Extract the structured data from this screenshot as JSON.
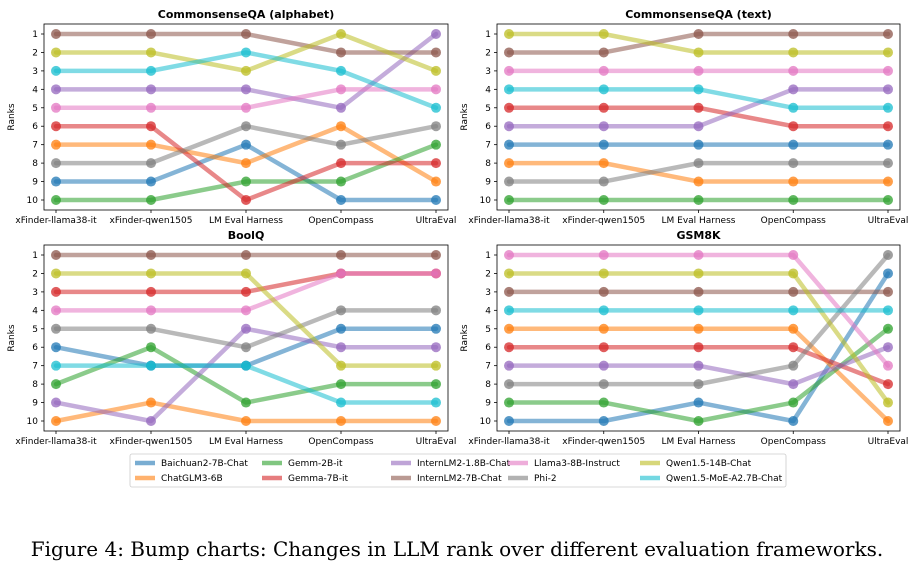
{
  "caption": "Figure 4: Bump charts: Changes in LLM rank over different evaluation frameworks.",
  "colors": {
    "Baichuan2-7B-Chat": "#1f77b4",
    "ChatGLM3-6B": "#ff7f0e",
    "Gemm-2B-it": "#2ca02c",
    "Gemma-7B-it": "#d62728",
    "InternLM2-1.8B-Chat": "#9467bd",
    "InternLM2-7B-Chat": "#8c564b",
    "Llama3-8B-Instruct": "#e377c2",
    "Phi-2": "#7f7f7f",
    "Qwen1.5-14B-Chat": "#bcbd22",
    "Qwen1.5-MoE-A2.7B-Chat": "#17becf"
  },
  "legend": [
    "Baichuan2-7B-Chat",
    "ChatGLM3-6B",
    "Gemm-2B-it",
    "Gemma-7B-it",
    "InternLM2-1.8B-Chat",
    "InternLM2-7B-Chat",
    "Llama3-8B-Instruct",
    "Phi-2",
    "Qwen1.5-14B-Chat",
    "Qwen1.5-MoE-A2.7B-Chat"
  ],
  "chart_data": [
    {
      "type": "line",
      "title": "CommonsenseQA (alphabet)",
      "xlabel": "",
      "ylabel": "Ranks",
      "categories": [
        "xFinder-llama38-it",
        "xFinder-qwen1505",
        "LM Eval Harness",
        "OpenCompass",
        "UltraEval"
      ],
      "yticks": [
        "1",
        "2",
        "3",
        "4",
        "5",
        "6",
        "7",
        "8",
        "9",
        "10"
      ],
      "ylim": [
        1,
        10
      ],
      "series": [
        {
          "name": "Baichuan2-7B-Chat",
          "values": [
            9,
            9,
            7,
            10,
            10
          ]
        },
        {
          "name": "ChatGLM3-6B",
          "values": [
            7,
            7,
            8,
            6,
            9
          ]
        },
        {
          "name": "Gemm-2B-it",
          "values": [
            10,
            10,
            9,
            9,
            7
          ]
        },
        {
          "name": "Gemma-7B-it",
          "values": [
            6,
            6,
            10,
            8,
            8
          ]
        },
        {
          "name": "InternLM2-1.8B-Chat",
          "values": [
            4,
            4,
            4,
            5,
            1
          ]
        },
        {
          "name": "InternLM2-7B-Chat",
          "values": [
            1,
            1,
            1,
            2,
            2
          ]
        },
        {
          "name": "Llama3-8B-Instruct",
          "values": [
            5,
            5,
            5,
            4,
            4
          ]
        },
        {
          "name": "Phi-2",
          "values": [
            8,
            8,
            6,
            7,
            6
          ]
        },
        {
          "name": "Qwen1.5-14B-Chat",
          "values": [
            2,
            2,
            3,
            1,
            3
          ]
        },
        {
          "name": "Qwen1.5-MoE-A2.7B-Chat",
          "values": [
            3,
            3,
            2,
            3,
            5
          ]
        }
      ]
    },
    {
      "type": "line",
      "title": "CommonsenseQA (text)",
      "xlabel": "",
      "ylabel": "Ranks",
      "categories": [
        "xFinder-llama38-it",
        "xFinder-qwen1505",
        "LM Eval Harness",
        "OpenCompass",
        "UltraEval"
      ],
      "yticks": [
        "1",
        "2",
        "3",
        "4",
        "5",
        "6",
        "7",
        "8",
        "9",
        "10"
      ],
      "ylim": [
        1,
        10
      ],
      "series": [
        {
          "name": "Baichuan2-7B-Chat",
          "values": [
            7,
            7,
            7,
            7,
            7
          ]
        },
        {
          "name": "ChatGLM3-6B",
          "values": [
            8,
            8,
            9,
            9,
            9
          ]
        },
        {
          "name": "Gemm-2B-it",
          "values": [
            10,
            10,
            10,
            10,
            10
          ]
        },
        {
          "name": "Gemma-7B-it",
          "values": [
            5,
            5,
            5,
            6,
            6
          ]
        },
        {
          "name": "InternLM2-1.8B-Chat",
          "values": [
            6,
            6,
            6,
            4,
            4
          ]
        },
        {
          "name": "InternLM2-7B-Chat",
          "values": [
            2,
            2,
            1,
            1,
            1
          ]
        },
        {
          "name": "Llama3-8B-Instruct",
          "values": [
            3,
            3,
            3,
            3,
            3
          ]
        },
        {
          "name": "Phi-2",
          "values": [
            9,
            9,
            8,
            8,
            8
          ]
        },
        {
          "name": "Qwen1.5-14B-Chat",
          "values": [
            1,
            1,
            2,
            2,
            2
          ]
        },
        {
          "name": "Qwen1.5-MoE-A2.7B-Chat",
          "values": [
            4,
            4,
            4,
            5,
            5
          ]
        }
      ]
    },
    {
      "type": "line",
      "title": "BoolQ",
      "xlabel": "",
      "ylabel": "Ranks",
      "categories": [
        "xFinder-llama38-it",
        "xFinder-qwen1505",
        "LM Eval Harness",
        "OpenCompass",
        "UltraEval"
      ],
      "yticks": [
        "1",
        "2",
        "3",
        "4",
        "5",
        "6",
        "7",
        "8",
        "9",
        "10"
      ],
      "ylim": [
        1,
        10
      ],
      "series": [
        {
          "name": "Baichuan2-7B-Chat",
          "values": [
            6,
            7,
            7,
            5,
            5
          ]
        },
        {
          "name": "ChatGLM3-6B",
          "values": [
            10,
            9,
            10,
            10,
            10
          ]
        },
        {
          "name": "Gemm-2B-it",
          "values": [
            8,
            6,
            9,
            8,
            8
          ]
        },
        {
          "name": "Gemma-7B-it",
          "values": [
            3,
            3,
            3,
            2,
            2
          ]
        },
        {
          "name": "InternLM2-1.8B-Chat",
          "values": [
            9,
            10,
            5,
            6,
            6
          ]
        },
        {
          "name": "InternLM2-7B-Chat",
          "values": [
            1,
            1,
            1,
            1,
            1
          ]
        },
        {
          "name": "Llama3-8B-Instruct",
          "values": [
            4,
            4,
            4,
            2,
            2
          ]
        },
        {
          "name": "Phi-2",
          "values": [
            5,
            5,
            6,
            4,
            4
          ]
        },
        {
          "name": "Qwen1.5-14B-Chat",
          "values": [
            2,
            2,
            2,
            7,
            7
          ]
        },
        {
          "name": "Qwen1.5-MoE-A2.7B-Chat",
          "values": [
            7,
            7,
            7,
            9,
            9
          ]
        }
      ]
    },
    {
      "type": "line",
      "title": "GSM8K",
      "xlabel": "",
      "ylabel": "Ranks",
      "categories": [
        "xFinder-llama38-it",
        "xFinder-qwen1505",
        "LM Eval Harness",
        "OpenCompass",
        "UltraEval"
      ],
      "yticks": [
        "1",
        "2",
        "3",
        "4",
        "5",
        "6",
        "7",
        "8",
        "9",
        "10"
      ],
      "ylim": [
        1,
        10
      ],
      "series": [
        {
          "name": "Baichuan2-7B-Chat",
          "values": [
            10,
            10,
            9,
            10,
            2
          ]
        },
        {
          "name": "ChatGLM3-6B",
          "values": [
            5,
            5,
            5,
            5,
            10
          ]
        },
        {
          "name": "Gemm-2B-it",
          "values": [
            9,
            9,
            10,
            9,
            5
          ]
        },
        {
          "name": "Gemma-7B-it",
          "values": [
            6,
            6,
            6,
            6,
            8
          ]
        },
        {
          "name": "InternLM2-1.8B-Chat",
          "values": [
            7,
            7,
            7,
            8,
            6
          ]
        },
        {
          "name": "InternLM2-7B-Chat",
          "values": [
            3,
            3,
            3,
            3,
            3
          ]
        },
        {
          "name": "Llama3-8B-Instruct",
          "values": [
            1,
            1,
            1,
            1,
            7
          ]
        },
        {
          "name": "Phi-2",
          "values": [
            8,
            8,
            8,
            7,
            1
          ]
        },
        {
          "name": "Qwen1.5-14B-Chat",
          "values": [
            2,
            2,
            2,
            2,
            9
          ]
        },
        {
          "name": "Qwen1.5-MoE-A2.7B-Chat",
          "values": [
            4,
            4,
            4,
            4,
            4
          ]
        }
      ]
    }
  ]
}
